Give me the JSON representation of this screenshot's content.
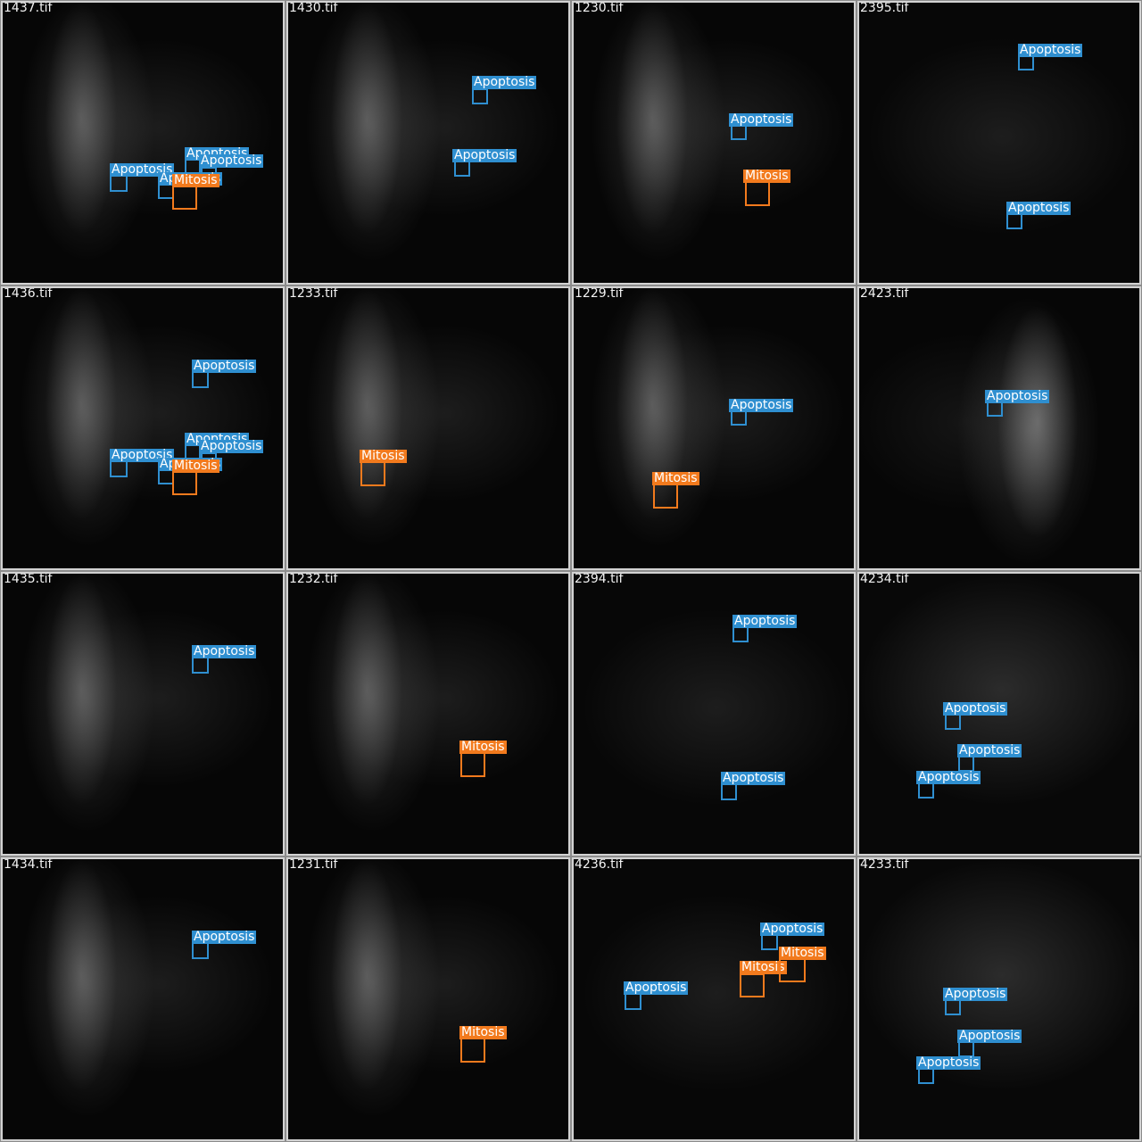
{
  "colors": {
    "apoptosis": "#2f8fd0",
    "mitosis": "#f27a1d"
  },
  "labels": {
    "apoptosis": "Apoptosis",
    "mitosis": "Mitosis"
  },
  "tiles": [
    {
      "name": "1437.tif",
      "style": "left-bright"
    },
    {
      "name": "1430.tif",
      "style": "left-bright"
    },
    {
      "name": "1230.tif",
      "style": "left-bright"
    },
    {
      "name": "2395.tif",
      "style": "dim"
    },
    {
      "name": "1436.tif",
      "style": "left-bright"
    },
    {
      "name": "1233.tif",
      "style": "left-bright"
    },
    {
      "name": "1229.tif",
      "style": "left-bright"
    },
    {
      "name": "2423.tif",
      "style": "right-bright"
    },
    {
      "name": "1435.tif",
      "style": "left-bright"
    },
    {
      "name": "1232.tif",
      "style": "left-bright"
    },
    {
      "name": "2394.tif",
      "style": "dim"
    },
    {
      "name": "4234.tif",
      "style": "diffuse"
    },
    {
      "name": "1434.tif",
      "style": "left-bright"
    },
    {
      "name": "1231.tif",
      "style": "left-bright"
    },
    {
      "name": "4236.tif",
      "style": "dim"
    },
    {
      "name": "4233.tif",
      "style": "diffuse"
    }
  ]
}
